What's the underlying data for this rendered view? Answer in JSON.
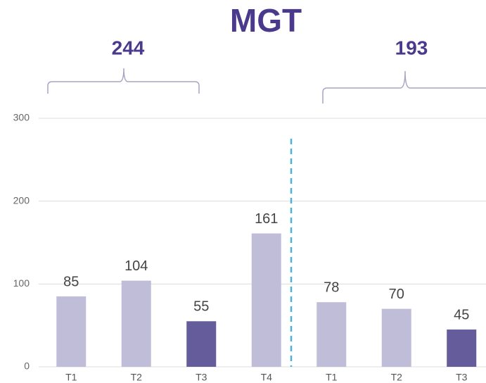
{
  "chart_data": {
    "type": "bar",
    "title": "MGT",
    "categories": [
      "T1",
      "T2",
      "T3",
      "T4",
      "T1",
      "T2",
      "T3"
    ],
    "values": [
      85,
      104,
      55,
      161,
      78,
      70,
      45
    ],
    "colors": [
      "#c0bdd8",
      "#c0bdd8",
      "#645c9b",
      "#c0bdd8",
      "#c0bdd8",
      "#c0bdd8",
      "#645c9b"
    ],
    "annotations": [
      {
        "text": "244"
      },
      {
        "text": "193"
      }
    ],
    "ylim": [
      0,
      300
    ],
    "yticks": [
      0,
      100,
      200,
      300
    ],
    "grid": true
  }
}
